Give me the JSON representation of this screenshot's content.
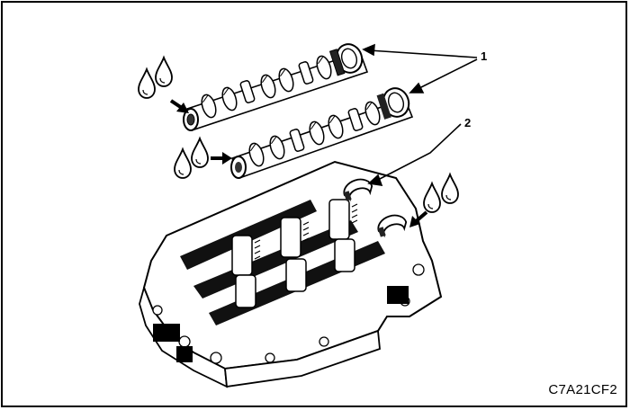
{
  "callouts": {
    "camshafts": "1",
    "cylinder_head_journals": "2"
  },
  "figure_code": "C7A21CF2",
  "icons": [
    "oil-drop-icon",
    "arrow-icon"
  ]
}
